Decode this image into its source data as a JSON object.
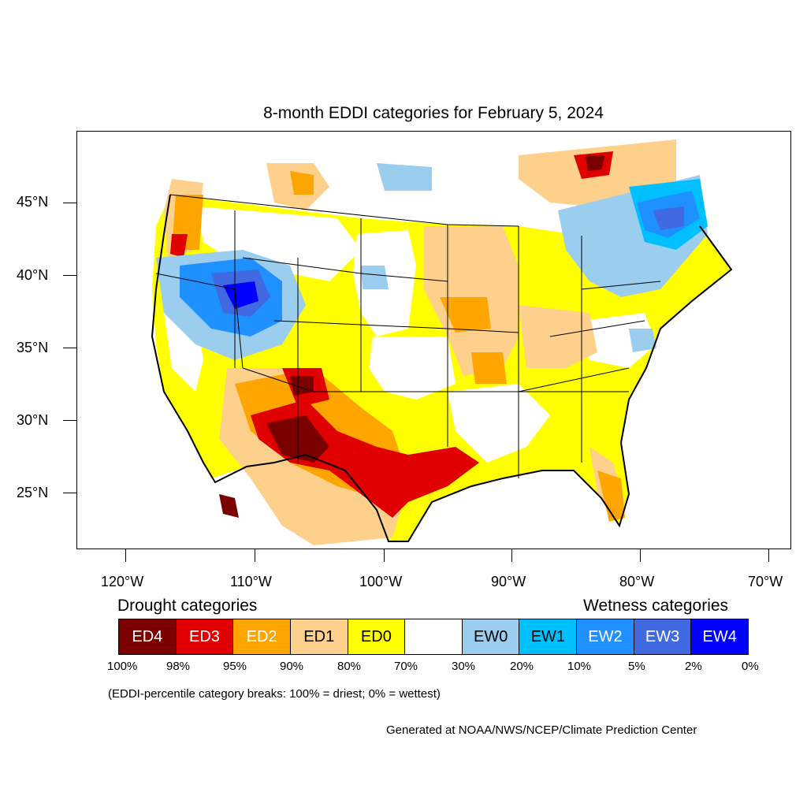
{
  "title": "8-month EDDI categories for February 5, 2024",
  "map": {
    "type": "choropleth-map",
    "region": "Contiguous United States",
    "lat_ticks": [
      "45°N",
      "40°N",
      "35°N",
      "30°N",
      "25°N"
    ],
    "lon_ticks": [
      "120°W",
      "110°W",
      "100°W",
      "90°W",
      "80°W",
      "70°W"
    ],
    "colors": {
      "ED4": "#7a0000",
      "ED3": "#e00000",
      "ED2": "#ffa500",
      "ED1": "#fdd18b",
      "ED0": "#ffff00",
      "EW0": "#9acdee",
      "EW1": "#00bfff",
      "EW2": "#1e90ff",
      "EW3": "#4169e1",
      "EW4": "#0000ff"
    }
  },
  "legend": {
    "drought_heading": "Drought categories",
    "wetness_heading": "Wetness categories",
    "categories": [
      {
        "label": "ED4",
        "color": "#7a0000",
        "text_color": "#ffffff"
      },
      {
        "label": "ED3",
        "color": "#e00000",
        "text_color": "#ffffff"
      },
      {
        "label": "ED2",
        "color": "#ffa500",
        "text_color": "#ffffff"
      },
      {
        "label": "ED1",
        "color": "#fdd18b",
        "text_color": "#000000"
      },
      {
        "label": "ED0",
        "color": "#ffff00",
        "text_color": "#000000"
      },
      {
        "label": "",
        "color": "#ffffff",
        "text_color": "#000000"
      },
      {
        "label": "EW0",
        "color": "#9acdee",
        "text_color": "#000000"
      },
      {
        "label": "EW1",
        "color": "#00bfff",
        "text_color": "#000000"
      },
      {
        "label": "EW2",
        "color": "#1e90ff",
        "text_color": "#ffffff"
      },
      {
        "label": "EW3",
        "color": "#4169e1",
        "text_color": "#ffffff"
      },
      {
        "label": "EW4",
        "color": "#0000ff",
        "text_color": "#ffffff"
      }
    ],
    "percent_breaks": [
      "100%",
      "98%",
      "95%",
      "90%",
      "80%",
      "70%",
      "30%",
      "20%",
      "10%",
      "5%",
      "2%",
      "0%"
    ]
  },
  "breaks_note": "(EDDI-percentile category breaks: 100% = driest; 0% = wettest)",
  "credit": "Generated at NOAA/NWS/NCEP/Climate Prediction Center"
}
